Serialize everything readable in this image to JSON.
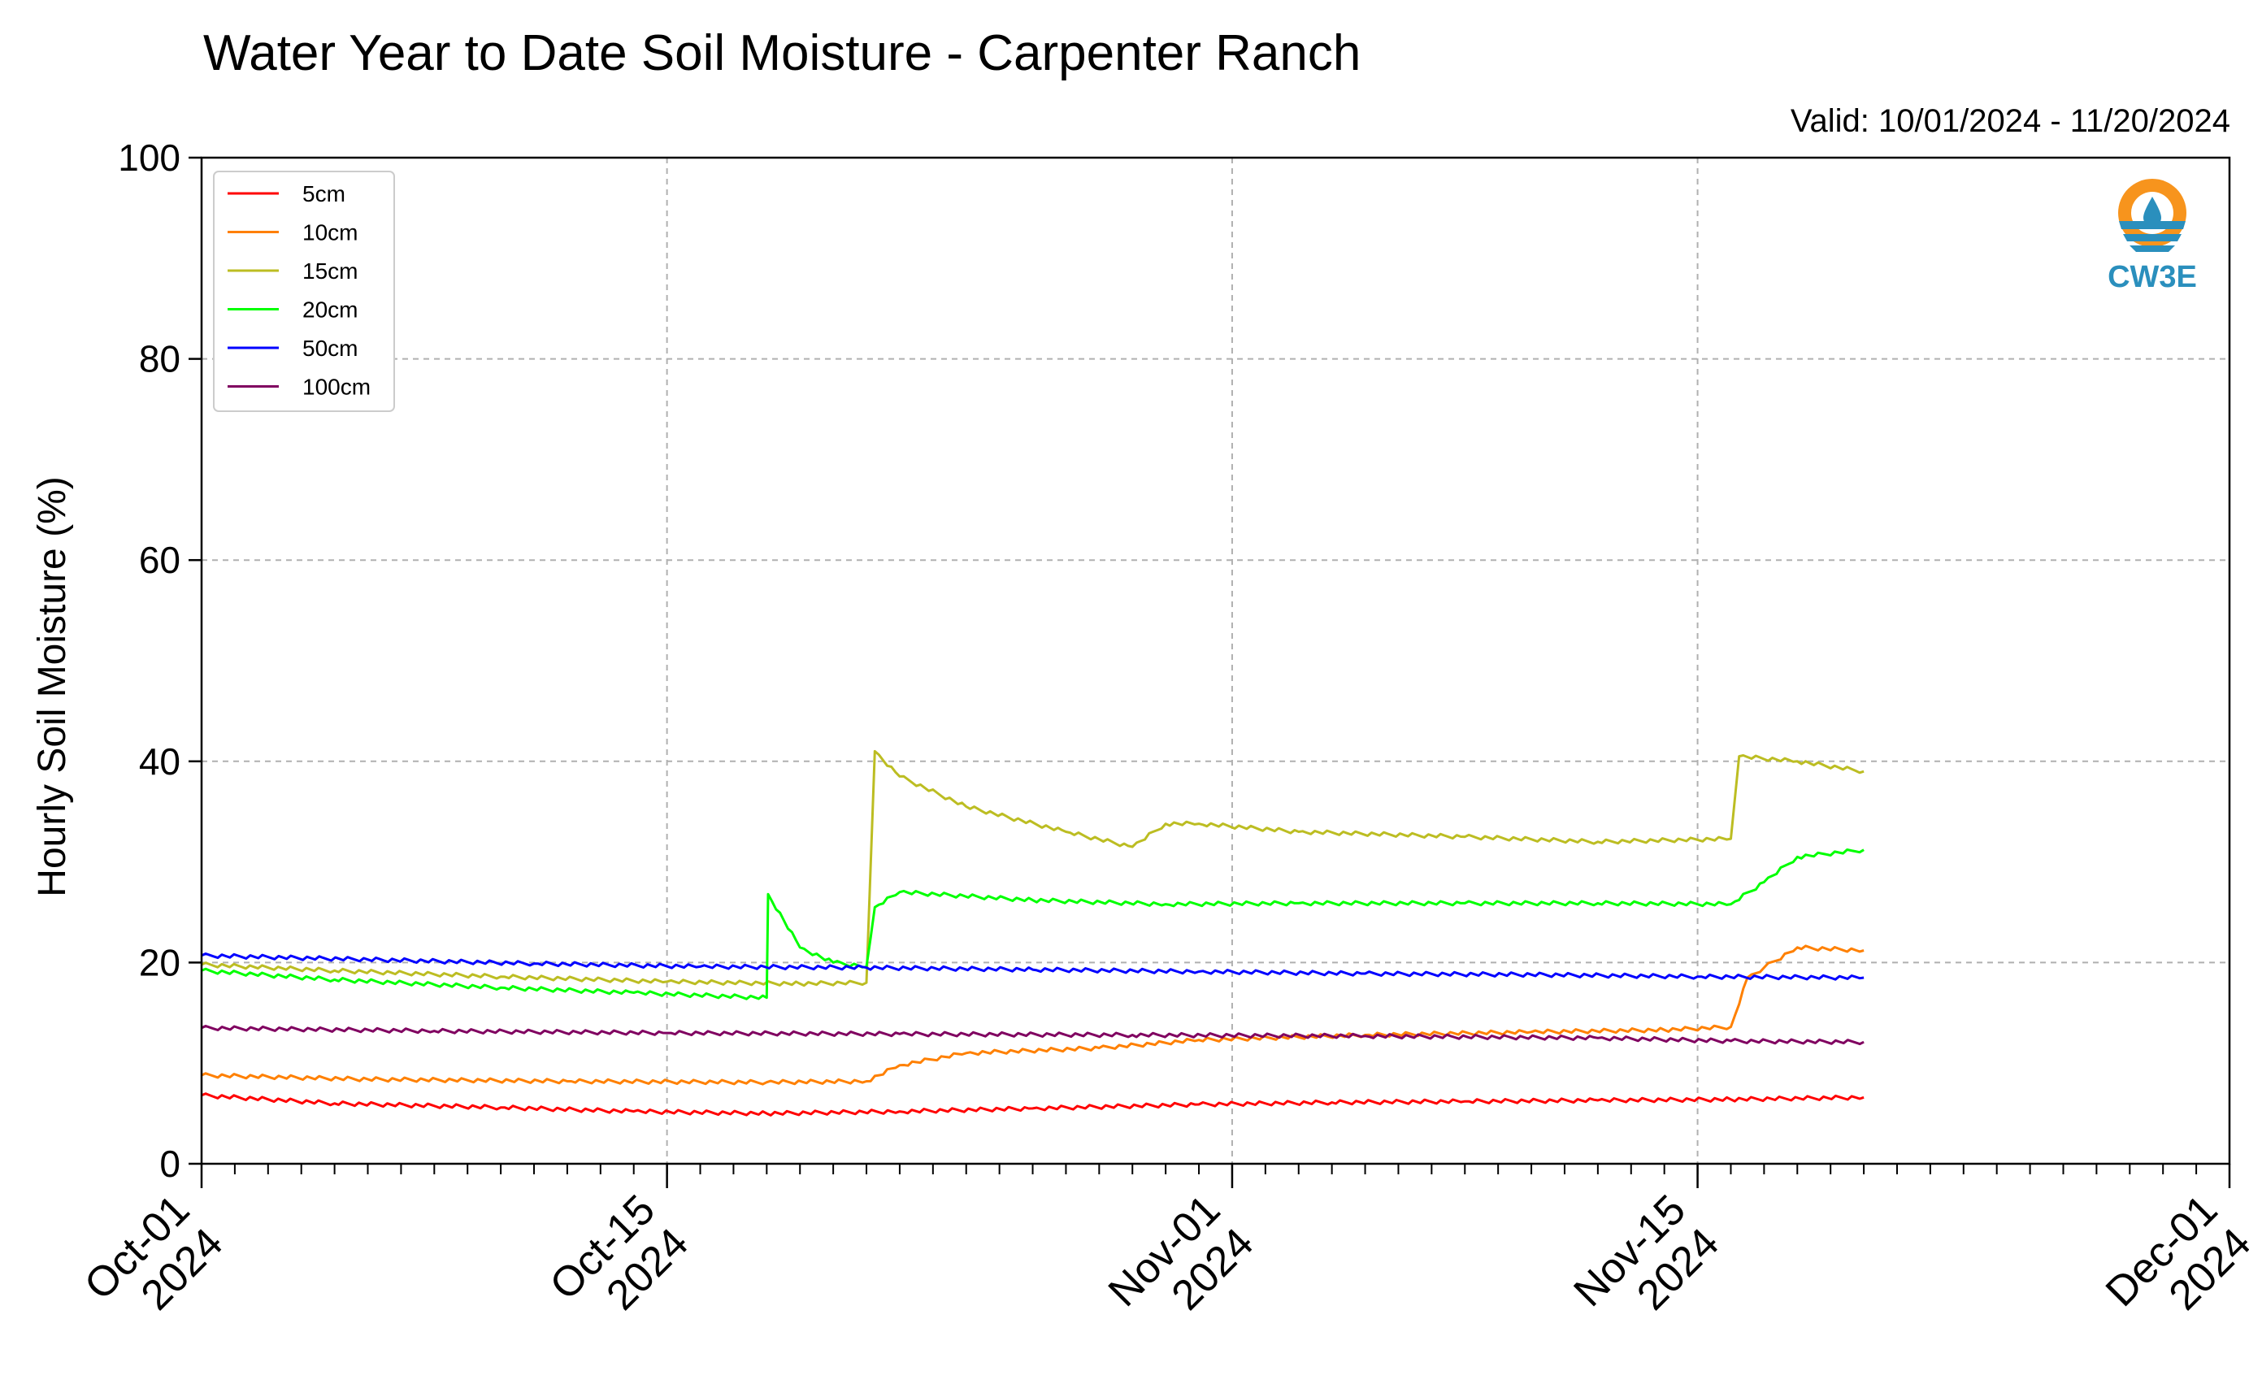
{
  "chart_data": {
    "type": "line",
    "title": "Water Year to Date Soil Moisture - Carpenter Ranch",
    "subtitle": "Valid: 10/01/2024 - 11/20/2024",
    "xlabel": "",
    "ylabel": "Hourly Soil Moisture (%)",
    "xlim": [
      "2024-10-01",
      "2024-12-01"
    ],
    "ylim": [
      0,
      100
    ],
    "yticks": [
      "0",
      "20",
      "40",
      "60",
      "80",
      "100"
    ],
    "xticks": [
      {
        "date": "2024-10-01",
        "line1": "Oct-01",
        "line2": "2024"
      },
      {
        "date": "2024-10-15",
        "line1": "Oct-15",
        "line2": "2024"
      },
      {
        "date": "2024-11-01",
        "line1": "Nov-01",
        "line2": "2024"
      },
      {
        "date": "2024-11-15",
        "line1": "Nov-15",
        "line2": "2024"
      },
      {
        "date": "2024-12-01",
        "line1": "Dec-01",
        "line2": "2024"
      }
    ],
    "grid": true,
    "legend_position": "top-left",
    "series": [
      {
        "name": "5cm",
        "color": "#ff0000",
        "x": [
          "2024-10-01",
          "2024-10-05",
          "2024-10-10",
          "2024-10-14",
          "2024-10-18",
          "2024-10-22",
          "2024-10-26",
          "2024-10-31",
          "2024-11-04",
          "2024-11-08",
          "2024-11-12",
          "2024-11-16",
          "2024-11-20"
        ],
        "y": [
          6.8,
          6.0,
          5.6,
          5.2,
          5.0,
          5.2,
          5.5,
          5.9,
          6.1,
          6.2,
          6.3,
          6.4,
          6.6
        ]
      },
      {
        "name": "10cm",
        "color": "#ff8000",
        "x": [
          "2024-10-01",
          "2024-10-06",
          "2024-10-12",
          "2024-10-18",
          "2024-10-21",
          "2024-10-22",
          "2024-10-24",
          "2024-10-28",
          "2024-10-31",
          "2024-11-05",
          "2024-11-10",
          "2024-11-14",
          "2024-11-16",
          "2024-11-16 12:00",
          "2024-11-17",
          "2024-11-18",
          "2024-11-20"
        ],
        "y": [
          8.8,
          8.4,
          8.2,
          8.1,
          8.2,
          9.8,
          11.0,
          11.5,
          12.3,
          12.8,
          13.1,
          13.3,
          13.6,
          18.5,
          19.5,
          21.5,
          21.2
        ]
      },
      {
        "name": "15cm",
        "color": "#bcbd22",
        "x": [
          "2024-10-01",
          "2024-10-05",
          "2024-10-10",
          "2024-10-15",
          "2024-10-19",
          "2024-10-21",
          "2024-10-21 06:00",
          "2024-10-22",
          "2024-10-24",
          "2024-10-27",
          "2024-10-29",
          "2024-10-30",
          "2024-10-31",
          "2024-11-03",
          "2024-11-08",
          "2024-11-12",
          "2024-11-16",
          "2024-11-16 06:00",
          "2024-11-18",
          "2024-11-20"
        ],
        "y": [
          19.8,
          19.2,
          18.6,
          18.1,
          17.9,
          18.0,
          41.0,
          38.5,
          35.5,
          33.0,
          31.5,
          33.8,
          33.8,
          33.0,
          32.5,
          32.0,
          32.3,
          40.5,
          40.0,
          39.0
        ]
      },
      {
        "name": "20cm",
        "color": "#00ff00",
        "x": [
          "2024-10-01",
          "2024-10-05",
          "2024-10-10",
          "2024-10-14",
          "2024-10-18",
          "2024-10-18 01:00",
          "2024-10-19",
          "2024-10-20",
          "2024-10-21",
          "2024-10-21 06:00",
          "2024-10-22",
          "2024-10-26",
          "2024-10-30",
          "2024-11-03",
          "2024-11-08",
          "2024-11-12",
          "2024-11-16",
          "2024-11-17",
          "2024-11-18",
          "2024-11-20"
        ],
        "y": [
          19.2,
          18.3,
          17.5,
          17.0,
          16.5,
          26.8,
          21.5,
          20.0,
          19.6,
          25.5,
          27.0,
          26.2,
          25.8,
          25.9,
          25.9,
          25.9,
          25.8,
          28.0,
          30.5,
          31.2
        ]
      },
      {
        "name": "50cm",
        "color": "#0000ff",
        "x": [
          "2024-10-01",
          "2024-10-06",
          "2024-10-11",
          "2024-10-16",
          "2024-10-21",
          "2024-10-26",
          "2024-10-31",
          "2024-11-05",
          "2024-11-10",
          "2024-11-15",
          "2024-11-20"
        ],
        "y": [
          20.7,
          20.3,
          19.9,
          19.6,
          19.5,
          19.3,
          19.1,
          18.9,
          18.8,
          18.6,
          18.5
        ]
      },
      {
        "name": "100cm",
        "color": "#800060",
        "x": [
          "2024-10-01",
          "2024-10-08",
          "2024-10-15",
          "2024-10-22",
          "2024-10-29",
          "2024-11-05",
          "2024-11-12",
          "2024-11-16",
          "2024-11-20"
        ],
        "y": [
          13.5,
          13.2,
          13.0,
          12.9,
          12.8,
          12.7,
          12.5,
          12.2,
          12.1
        ]
      }
    ]
  },
  "logo": {
    "label": "CW3E",
    "accent": "#f7941d",
    "brand": "#2a8fbd"
  }
}
